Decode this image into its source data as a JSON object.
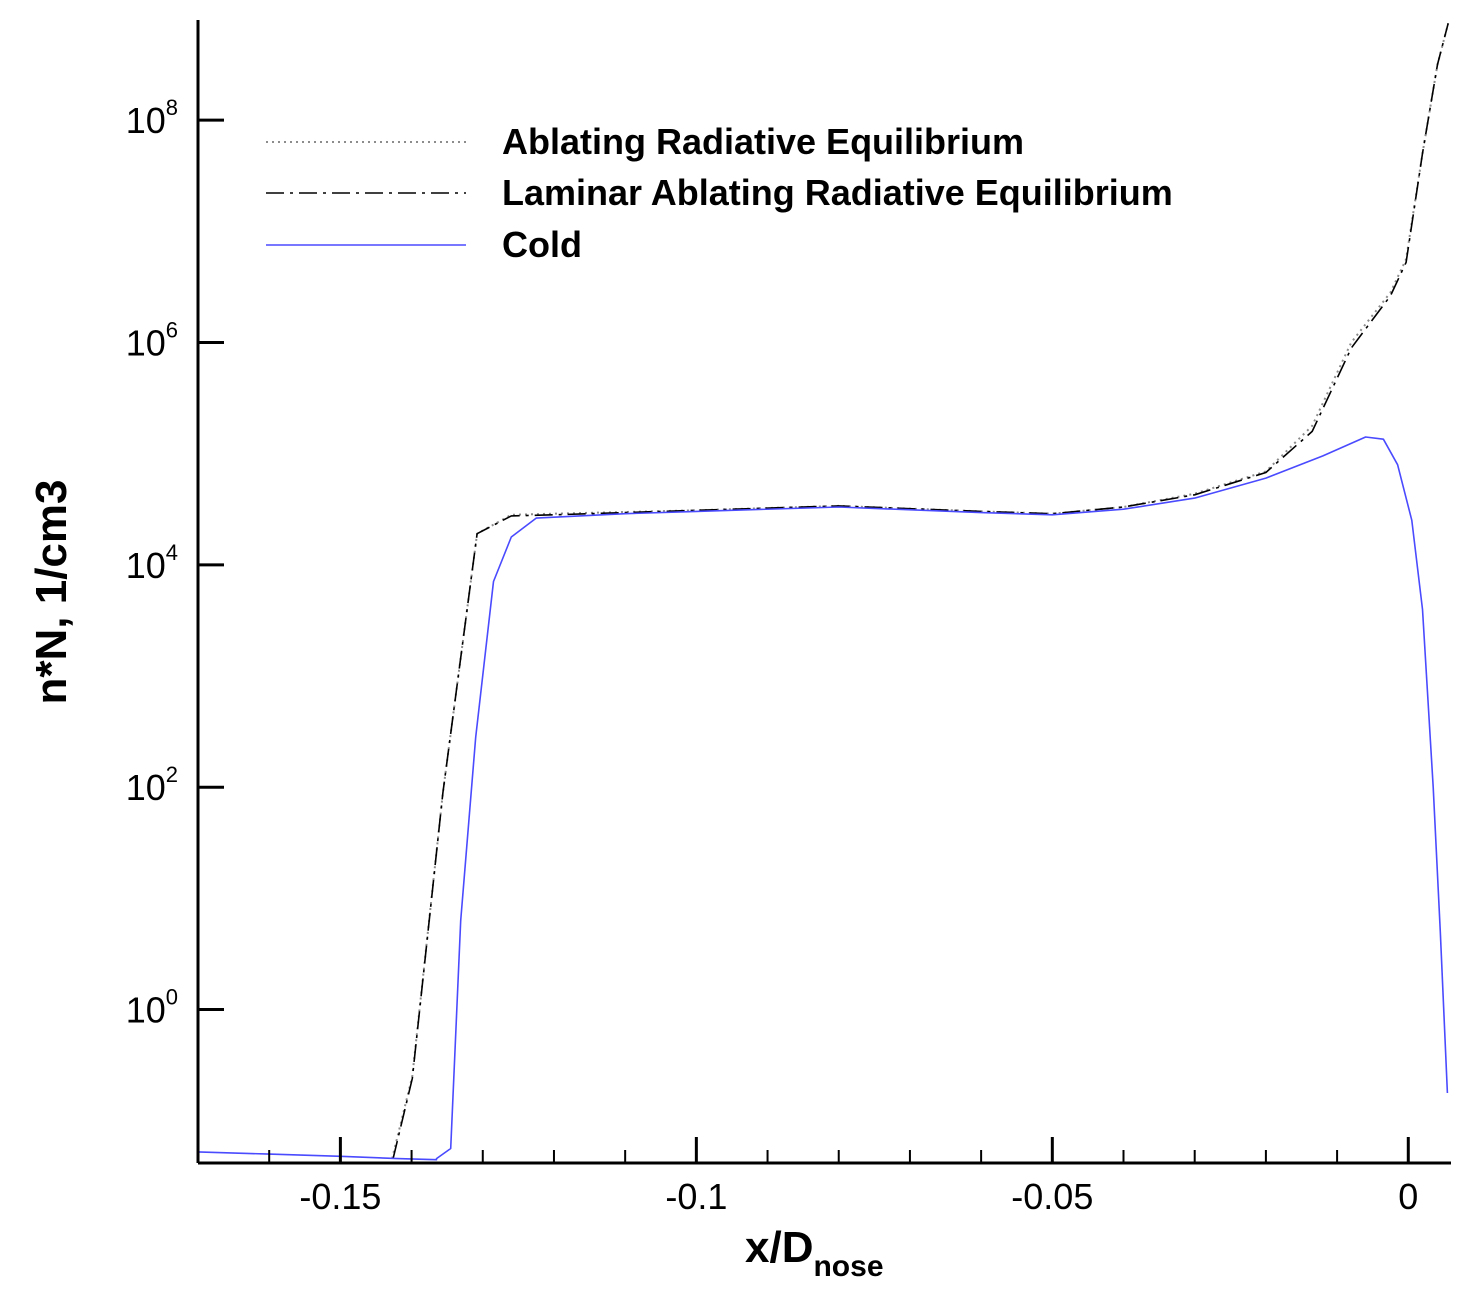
{
  "chart_data": {
    "type": "line",
    "xlabel": "x/D",
    "xlabel_sub": "nose",
    "ylabel": "n*N, 1/cm3",
    "xlim": [
      -0.17,
      0.006
    ],
    "ylim_log10": [
      -1.38,
      8.9
    ],
    "y_scale": "log",
    "x_major_ticks": [
      {
        "value": -0.15,
        "label": "-0.15"
      },
      {
        "value": -0.1,
        "label": "-0.1"
      },
      {
        "value": -0.05,
        "label": "-0.05"
      },
      {
        "value": 0,
        "label": "0"
      }
    ],
    "x_minor_step": 0.01,
    "y_major_ticks": [
      {
        "exp": 0,
        "base": "10",
        "sup": "0"
      },
      {
        "exp": 2,
        "base": "10",
        "sup": "2"
      },
      {
        "exp": 4,
        "base": "10",
        "sup": "4"
      },
      {
        "exp": 6,
        "base": "10",
        "sup": "6"
      },
      {
        "exp": 8,
        "base": "10",
        "sup": "8"
      }
    ],
    "legend_position": "top-left",
    "series": [
      {
        "name": "Ablating Radiative Equilibrium",
        "style": "dotted",
        "color": "#8c8c8c",
        "points": [
          [
            -0.14273,
            -1.34
          ],
          [
            -0.1399,
            -0.6
          ],
          [
            -0.1356,
            1.95
          ],
          [
            -0.1308,
            4.28
          ],
          [
            -0.126,
            4.45
          ],
          [
            -0.12,
            4.46
          ],
          [
            -0.1,
            4.49
          ],
          [
            -0.08,
            4.53
          ],
          [
            -0.06,
            4.48
          ],
          [
            -0.05,
            4.46
          ],
          [
            -0.04,
            4.52
          ],
          [
            -0.03,
            4.64
          ],
          [
            -0.02,
            4.84
          ],
          [
            -0.0135,
            5.25
          ],
          [
            -0.008,
            6.0
          ],
          [
            -0.0025,
            6.45
          ],
          [
            -0.0003,
            6.75
          ],
          [
            0.002,
            7.7
          ],
          [
            0.0041,
            8.5
          ],
          [
            0.0056,
            8.87
          ]
        ]
      },
      {
        "name": "Laminar Ablating Radiative Equilibrium",
        "style": "dashdot",
        "color": "#000000",
        "points": [
          [
            -0.1426,
            -1.34
          ],
          [
            -0.1399,
            -0.62
          ],
          [
            -0.1356,
            1.95
          ],
          [
            -0.1308,
            4.28
          ],
          [
            -0.126,
            4.44
          ],
          [
            -0.12,
            4.45
          ],
          [
            -0.1,
            4.49
          ],
          [
            -0.08,
            4.53
          ],
          [
            -0.06,
            4.48
          ],
          [
            -0.05,
            4.46
          ],
          [
            -0.04,
            4.52
          ],
          [
            -0.03,
            4.63
          ],
          [
            -0.02,
            4.83
          ],
          [
            -0.0135,
            5.2
          ],
          [
            -0.008,
            5.95
          ],
          [
            -0.0025,
            6.42
          ],
          [
            -0.0003,
            6.72
          ],
          [
            0.002,
            7.7
          ],
          [
            0.0041,
            8.5
          ],
          [
            0.0056,
            8.87
          ]
        ]
      },
      {
        "name": "Cold",
        "style": "solid",
        "color": "#4a4aff",
        "points": [
          [
            -0.17,
            -1.28
          ],
          [
            -0.16,
            -1.3
          ],
          [
            -0.15,
            -1.32
          ],
          [
            -0.142,
            -1.34
          ],
          [
            -0.1365,
            -1.35
          ],
          [
            -0.1365,
            -1.34
          ],
          [
            -0.1345,
            -1.25
          ],
          [
            -0.1331,
            0.8
          ],
          [
            -0.131,
            2.45
          ],
          [
            -0.1285,
            3.85
          ],
          [
            -0.126,
            4.25
          ],
          [
            -0.1225,
            4.42
          ],
          [
            -0.11,
            4.46
          ],
          [
            -0.1,
            4.48
          ],
          [
            -0.08,
            4.52
          ],
          [
            -0.06,
            4.47
          ],
          [
            -0.05,
            4.45
          ],
          [
            -0.04,
            4.5
          ],
          [
            -0.03,
            4.6
          ],
          [
            -0.02,
            4.78
          ],
          [
            -0.012,
            4.98
          ],
          [
            -0.006,
            5.15
          ],
          [
            -0.0035,
            5.13
          ],
          [
            -0.0015,
            4.9
          ],
          [
            0.0005,
            4.4
          ],
          [
            0.002,
            3.6
          ],
          [
            0.0035,
            2.0
          ],
          [
            0.0045,
            0.7
          ],
          [
            0.0055,
            -0.75
          ]
        ]
      }
    ]
  }
}
